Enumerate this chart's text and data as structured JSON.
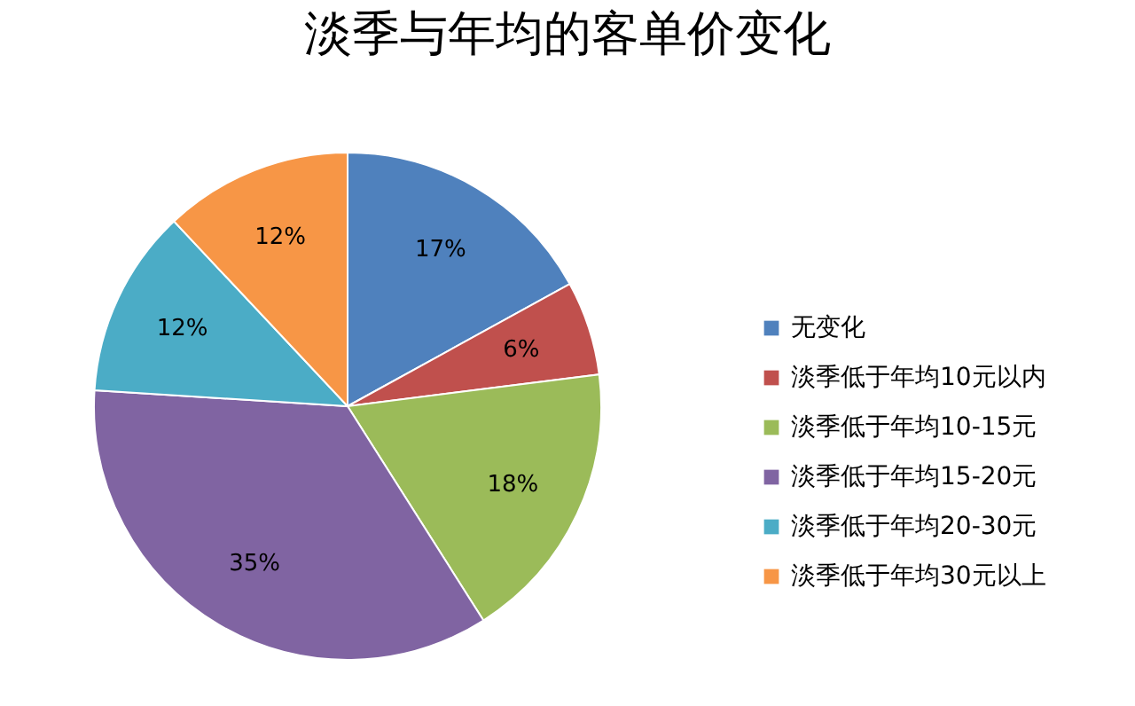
{
  "chart_data": {
    "type": "pie",
    "title": "淡季与年均的客单价变化",
    "categories": [
      "无变化",
      "淡季低于年均10元以内",
      "淡季低于年均10-15元",
      "淡季低于年均15-20元",
      "淡季低于年均20-30元",
      "淡季低于年均30元以上"
    ],
    "values": [
      17,
      6,
      18,
      35,
      12,
      12
    ],
    "colors": [
      "#4f81bd",
      "#c0504d",
      "#9bbb59",
      "#8064a2",
      "#4bacc6",
      "#f79646"
    ],
    "value_labels": [
      "17%",
      "6%",
      "18%",
      "35%",
      "12%",
      "12%"
    ],
    "legend": "right"
  }
}
